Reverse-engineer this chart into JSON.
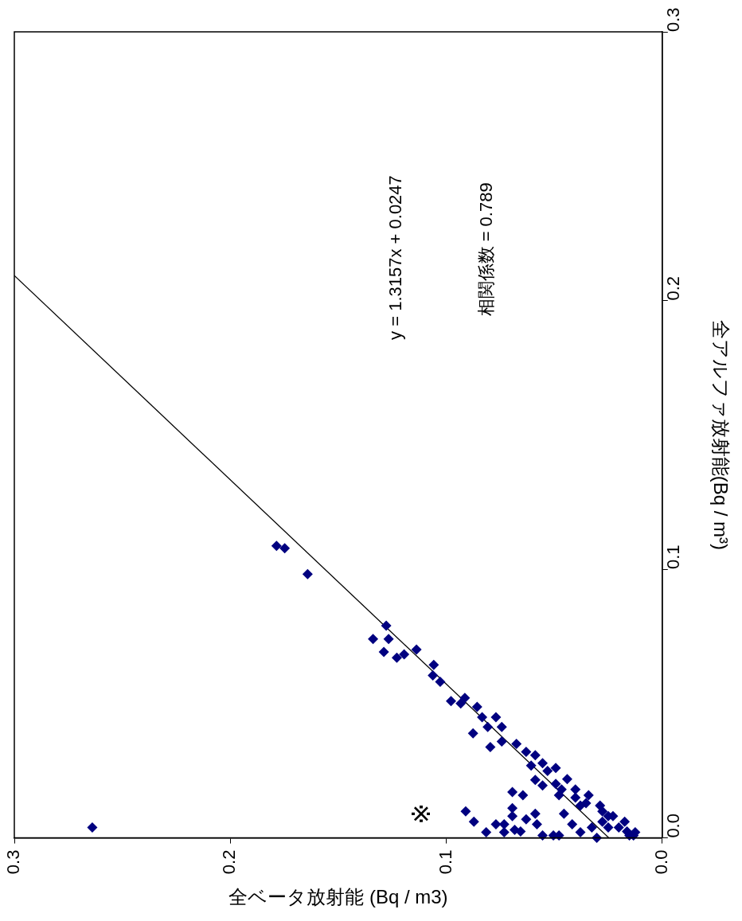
{
  "chart_data": {
    "type": "scatter",
    "xlabel": "全ベータ放射能 (Bq / m3)",
    "ylabel": "全アルファ放射能(Bq / m³)",
    "xlim": [
      0.3,
      0
    ],
    "ylim": [
      0,
      0.3
    ],
    "xticks": [
      {
        "value": 0.3,
        "label": "0.3"
      },
      {
        "value": 0.2,
        "label": "0.2"
      },
      {
        "value": 0.1,
        "label": "0.1"
      },
      {
        "value": 0,
        "label": "0.0"
      }
    ],
    "yticks": [
      {
        "value": 0,
        "label": "0.0"
      },
      {
        "value": 0.1,
        "label": "0.1"
      },
      {
        "value": 0.2,
        "label": "0.2"
      },
      {
        "value": 0.3,
        "label": "0.3"
      }
    ],
    "grid": false,
    "legend": false,
    "marker": "diamond",
    "annotations": [
      "y = 1.3157x + 0.0247",
      "相関係数 = 0.789",
      "※"
    ],
    "series": [
      {
        "color": "#000080",
        "x": [
          0.2639,
          0.1786,
          0.1748,
          0.1642,
          0.1278,
          0.1339,
          0.1267,
          0.1289,
          0.1229,
          0.1195,
          0.1138,
          0.1058,
          0.1062,
          0.1028,
          0.0978,
          0.0933,
          0.0914,
          0.0857,
          0.0834,
          0.077,
          0.0808,
          0.0743,
          0.0876,
          0.0796,
          0.0743,
          0.0675,
          0.063,
          0.0588,
          0.0607,
          0.0554,
          0.0493,
          0.0588,
          0.0554,
          0.0493,
          0.044,
          0.0478,
          0.0694,
          0.0645,
          0.0402,
          0.0341,
          0.0379,
          0.0288,
          0.0228,
          0.0133,
          0.091,
          0.0872,
          0.0815,
          0.077,
          0.0732,
          0.0732,
          0.0694,
          0.0694,
          0.0683,
          0.0656,
          0.063,
          0.0588,
          0.058,
          0.0554,
          0.0504,
          0.0478,
          0.0455,
          0.0417,
          0.0379,
          0.0326,
          0.0303,
          0.0277,
          0.025,
          0.0201,
          0.0163,
          0.0152,
          0.0531,
          0.0466,
          0.0402,
          0.0353,
          0.0277,
          0.025,
          0.0174,
          0.0125
        ],
        "values": [
          0.0039,
          0.1087,
          0.1078,
          0.0982,
          0.079,
          0.074,
          0.074,
          0.0692,
          0.0671,
          0.0683,
          0.0701,
          0.0644,
          0.0605,
          0.0581,
          0.0509,
          0.05,
          0.0521,
          0.0488,
          0.0449,
          0.0449,
          0.0413,
          0.0413,
          0.0389,
          0.0338,
          0.0359,
          0.035,
          0.032,
          0.0308,
          0.0269,
          0.0278,
          0.026,
          0.0216,
          0.0195,
          0.0201,
          0.0219,
          0.0159,
          0.0171,
          0.0159,
          0.018,
          0.0159,
          0.012,
          0.012,
          0.0081,
          0.0009,
          0.0099,
          0.006,
          0.0021,
          0.0051,
          0.0051,
          0.0021,
          0.0111,
          0.0081,
          0.003,
          0.0024,
          0.0069,
          0.009,
          0.0051,
          0.0009,
          0.0009,
          0.0009,
          0.009,
          0.0051,
          0.0021,
          0.0039,
          0.0,
          0.006,
          0.0039,
          0.0039,
          0.0024,
          0.0009,
          0.0249,
          0.018,
          0.015,
          0.0129,
          0.0099,
          0.0081,
          0.006,
          0.0021
        ]
      },
      {
        "type": "line",
        "marker": "none",
        "color": "#000000",
        "x": [
          0.0247,
          0.3
        ],
        "values": [
          0,
          0.2093
        ]
      }
    ]
  }
}
